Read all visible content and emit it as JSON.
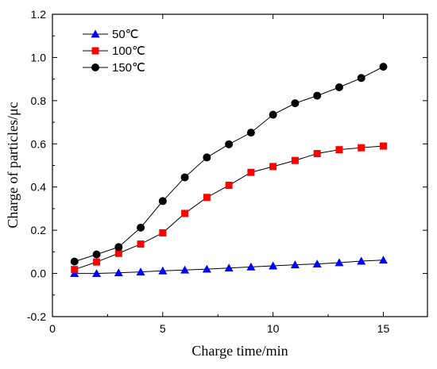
{
  "chart_data": {
    "type": "line",
    "xlabel": "Charge time/min",
    "ylabel": "Charge of particles/μc",
    "xlim": [
      0,
      17
    ],
    "ylim": [
      -0.2,
      1.2
    ],
    "xticks": [
      0,
      5,
      10,
      15
    ],
    "yticks": [
      -0.2,
      0.0,
      0.2,
      0.4,
      0.6,
      0.8,
      1.0,
      1.2
    ],
    "legend_position": "top-left",
    "grid": false,
    "x": [
      1,
      2,
      3,
      4,
      5,
      6,
      7,
      8,
      9,
      10,
      11,
      12,
      13,
      14,
      15
    ],
    "series": [
      {
        "name": "50℃",
        "color": "#0000ff",
        "marker": "triangle",
        "values": [
          0.0,
          0.0,
          0.003,
          0.007,
          0.012,
          0.016,
          0.02,
          0.025,
          0.03,
          0.035,
          0.04,
          0.044,
          0.05,
          0.057,
          0.062
        ]
      },
      {
        "name": "100℃",
        "color": "#ff0000",
        "marker": "square",
        "values": [
          0.018,
          0.053,
          0.093,
          0.136,
          0.188,
          0.278,
          0.352,
          0.408,
          0.468,
          0.495,
          0.523,
          0.555,
          0.573,
          0.582,
          0.59
        ]
      },
      {
        "name": "150℃",
        "color": "#000000",
        "marker": "circle",
        "values": [
          0.055,
          0.088,
          0.122,
          0.212,
          0.335,
          0.445,
          0.537,
          0.598,
          0.652,
          0.735,
          0.788,
          0.823,
          0.862,
          0.905,
          0.957
        ]
      }
    ]
  }
}
